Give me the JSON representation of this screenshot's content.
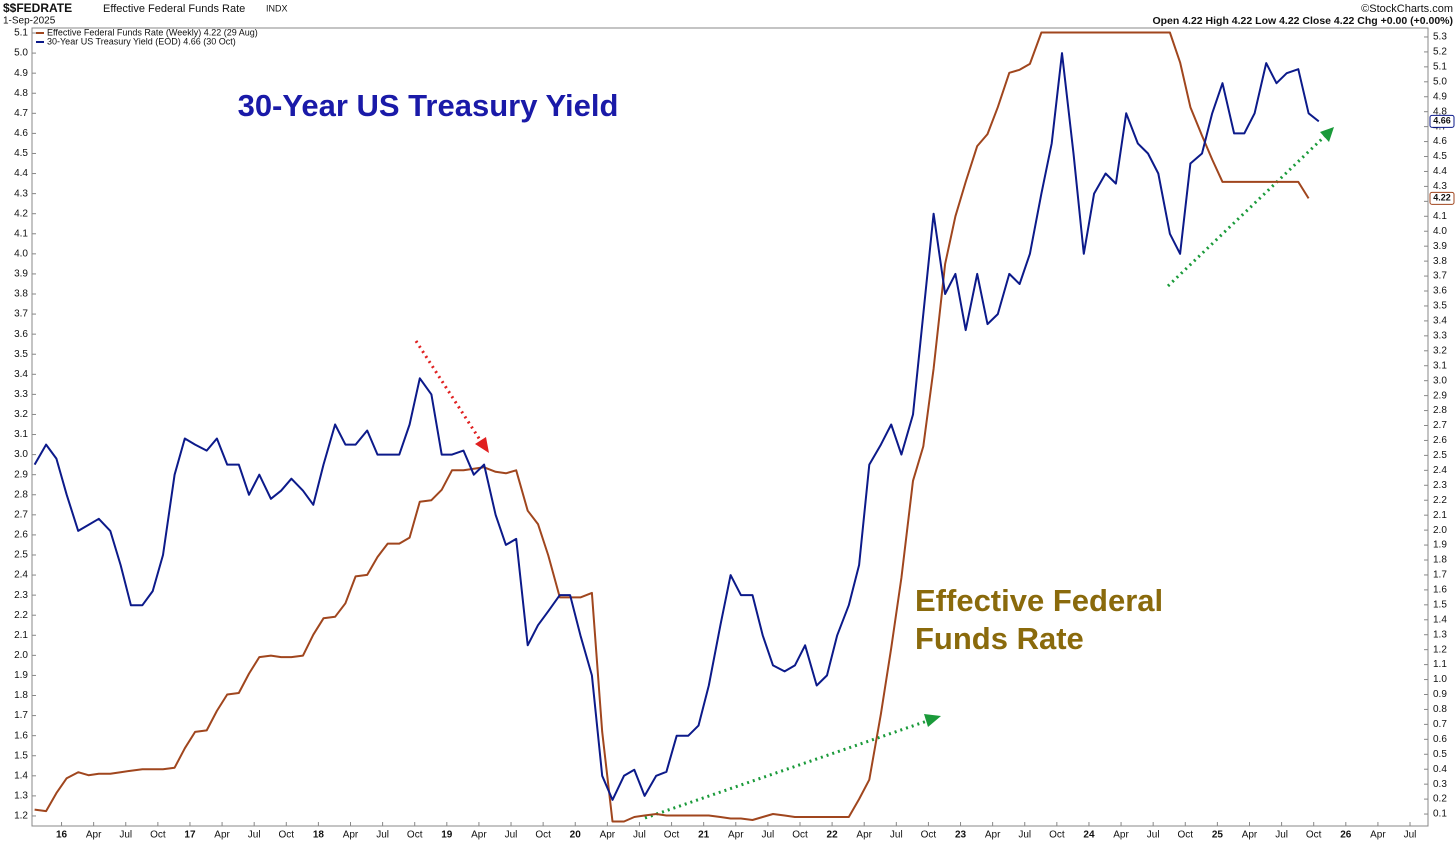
{
  "chart_data": {
    "type": "line",
    "header": {
      "symbol": "$$FEDRATE",
      "name": "Effective Federal Funds Rate",
      "exchange": "INDX",
      "date": "1-Sep-2025",
      "copyright": "©StockCharts.com",
      "quote": "Open 4.22  High 4.22  Low 4.22  Close 4.22  Chg +0.00 (+0.00%)"
    },
    "annotations": [
      "30-Year US Treasury Yield",
      "Effective Federal",
      "Funds Rate"
    ],
    "x": [
      2015.79,
      2015.88,
      2015.96,
      2016.04,
      2016.13,
      2016.21,
      2016.29,
      2016.38,
      2016.46,
      2016.54,
      2016.63,
      2016.71,
      2016.79,
      2016.88,
      2016.96,
      2017.04,
      2017.13,
      2017.21,
      2017.29,
      2017.38,
      2017.46,
      2017.54,
      2017.63,
      2017.71,
      2017.79,
      2017.88,
      2017.96,
      2018.04,
      2018.13,
      2018.21,
      2018.29,
      2018.38,
      2018.46,
      2018.54,
      2018.63,
      2018.71,
      2018.79,
      2018.88,
      2018.96,
      2019.04,
      2019.13,
      2019.21,
      2019.29,
      2019.38,
      2019.46,
      2019.54,
      2019.63,
      2019.71,
      2019.79,
      2019.88,
      2019.96,
      2020.04,
      2020.13,
      2020.21,
      2020.29,
      2020.38,
      2020.46,
      2020.54,
      2020.63,
      2020.71,
      2020.79,
      2020.88,
      2020.96,
      2021.04,
      2021.13,
      2021.21,
      2021.29,
      2021.38,
      2021.46,
      2021.54,
      2021.63,
      2021.71,
      2021.79,
      2021.88,
      2021.96,
      2022.04,
      2022.13,
      2022.21,
      2022.29,
      2022.38,
      2022.46,
      2022.54,
      2022.63,
      2022.71,
      2022.79,
      2022.88,
      2022.96,
      2023.04,
      2023.13,
      2023.21,
      2023.29,
      2023.38,
      2023.46,
      2023.54,
      2023.63,
      2023.71,
      2023.79,
      2023.88,
      2023.96,
      2024.04,
      2024.13,
      2024.21,
      2024.29,
      2024.38,
      2024.46,
      2024.54,
      2024.63,
      2024.71,
      2024.79,
      2024.88,
      2024.96,
      2025.04,
      2025.13,
      2025.21,
      2025.29,
      2025.38,
      2025.46,
      2025.54,
      2025.63,
      2025.71,
      2025.79
    ],
    "series": [
      {
        "name": "Effective Federal Funds Rate (Weekly) 4.22 (29 Aug)",
        "color": "#a0461e",
        "axis": "y2",
        "last_label": "4.22",
        "values": [
          0.13,
          0.12,
          0.24,
          0.34,
          0.38,
          0.36,
          0.37,
          0.37,
          0.38,
          0.39,
          0.4,
          0.4,
          0.4,
          0.41,
          0.54,
          0.65,
          0.66,
          0.79,
          0.9,
          0.91,
          1.04,
          1.15,
          1.16,
          1.15,
          1.15,
          1.16,
          1.3,
          1.41,
          1.42,
          1.51,
          1.69,
          1.7,
          1.82,
          1.91,
          1.91,
          1.95,
          2.19,
          2.2,
          2.27,
          2.4,
          2.4,
          2.41,
          2.42,
          2.39,
          2.38,
          2.4,
          2.13,
          2.04,
          1.83,
          1.55,
          1.55,
          1.55,
          1.58,
          0.65,
          0.05,
          0.05,
          0.08,
          0.09,
          0.1,
          0.09,
          0.09,
          0.09,
          0.09,
          0.09,
          0.08,
          0.07,
          0.07,
          0.06,
          0.08,
          0.1,
          0.09,
          0.08,
          0.08,
          0.08,
          0.08,
          0.08,
          0.08,
          0.2,
          0.33,
          0.77,
          1.21,
          1.68,
          2.33,
          2.56,
          3.08,
          3.78,
          4.1,
          4.33,
          4.57,
          4.65,
          4.83,
          5.06,
          5.08,
          5.12,
          5.33,
          5.33,
          5.33,
          5.33,
          5.33,
          5.33,
          5.33,
          5.33,
          5.33,
          5.33,
          5.33,
          5.33,
          5.33,
          5.13,
          4.83,
          4.64,
          4.48,
          4.33,
          4.33,
          4.33,
          4.33,
          4.33,
          4.33,
          4.33,
          4.33,
          4.22,
          null
        ]
      },
      {
        "name": "30-Year US Treasury Yield (EOD) 4.66 (30 Oct)",
        "color": "#0c1a8a",
        "axis": "y",
        "last_label": "4.66",
        "values": [
          2.95,
          3.05,
          2.98,
          2.8,
          2.62,
          2.65,
          2.68,
          2.62,
          2.45,
          2.25,
          2.25,
          2.32,
          2.5,
          2.9,
          3.08,
          3.05,
          3.02,
          3.08,
          2.95,
          2.95,
          2.8,
          2.9,
          2.78,
          2.82,
          2.88,
          2.82,
          2.75,
          2.95,
          3.15,
          3.05,
          3.05,
          3.12,
          3.0,
          3.0,
          3.0,
          3.15,
          3.38,
          3.3,
          3.0,
          3.0,
          3.02,
          2.9,
          2.95,
          2.7,
          2.55,
          2.58,
          2.05,
          2.15,
          2.22,
          2.3,
          2.3,
          2.1,
          1.9,
          1.4,
          1.28,
          1.4,
          1.43,
          1.3,
          1.4,
          1.42,
          1.6,
          1.6,
          1.65,
          1.85,
          2.15,
          2.4,
          2.3,
          2.3,
          2.1,
          1.95,
          1.92,
          1.95,
          2.05,
          1.85,
          1.9,
          2.1,
          2.25,
          2.45,
          2.95,
          3.05,
          3.15,
          3.0,
          3.2,
          3.7,
          4.2,
          3.8,
          3.9,
          3.62,
          3.9,
          3.65,
          3.7,
          3.9,
          3.85,
          4.0,
          4.3,
          4.55,
          5.0,
          4.5,
          4.0,
          4.3,
          4.4,
          4.35,
          4.7,
          4.55,
          4.5,
          4.4,
          4.1,
          4.0,
          4.45,
          4.5,
          4.7,
          4.85,
          4.6,
          4.6,
          4.7,
          4.95,
          4.85,
          4.9,
          4.92,
          4.7,
          4.66
        ]
      }
    ],
    "xlim": [
      2015.77,
      2026.64
    ],
    "xticks": [
      {
        "value": 2016,
        "label": "16"
      },
      {
        "value": 2016.25,
        "label": "Apr"
      },
      {
        "value": 2016.5,
        "label": "Jul"
      },
      {
        "value": 2016.75,
        "label": "Oct"
      },
      {
        "value": 2017,
        "label": "17"
      },
      {
        "value": 2017.25,
        "label": "Apr"
      },
      {
        "value": 2017.5,
        "label": "Jul"
      },
      {
        "value": 2017.75,
        "label": "Oct"
      },
      {
        "value": 2018,
        "label": "18"
      },
      {
        "value": 2018.25,
        "label": "Apr"
      },
      {
        "value": 2018.5,
        "label": "Jul"
      },
      {
        "value": 2018.75,
        "label": "Oct"
      },
      {
        "value": 2019,
        "label": "19"
      },
      {
        "value": 2019.25,
        "label": "Apr"
      },
      {
        "value": 2019.5,
        "label": "Jul"
      },
      {
        "value": 2019.75,
        "label": "Oct"
      },
      {
        "value": 2020,
        "label": "20"
      },
      {
        "value": 2020.25,
        "label": "Apr"
      },
      {
        "value": 2020.5,
        "label": "Jul"
      },
      {
        "value": 2020.75,
        "label": "Oct"
      },
      {
        "value": 2021,
        "label": "21"
      },
      {
        "value": 2021.25,
        "label": "Apr"
      },
      {
        "value": 2021.5,
        "label": "Jul"
      },
      {
        "value": 2021.75,
        "label": "Oct"
      },
      {
        "value": 2022,
        "label": "22"
      },
      {
        "value": 2022.25,
        "label": "Apr"
      },
      {
        "value": 2022.5,
        "label": "Jul"
      },
      {
        "value": 2022.75,
        "label": "Oct"
      },
      {
        "value": 2023,
        "label": "23"
      },
      {
        "value": 2023.25,
        "label": "Apr"
      },
      {
        "value": 2023.5,
        "label": "Jul"
      },
      {
        "value": 2023.75,
        "label": "Oct"
      },
      {
        "value": 2024,
        "label": "24"
      },
      {
        "value": 2024.25,
        "label": "Apr"
      },
      {
        "value": 2024.5,
        "label": "Jul"
      },
      {
        "value": 2024.75,
        "label": "Oct"
      },
      {
        "value": 2025,
        "label": "25"
      },
      {
        "value": 2025.25,
        "label": "Apr"
      },
      {
        "value": 2025.5,
        "label": "Jul"
      },
      {
        "value": 2025.75,
        "label": "Oct"
      },
      {
        "value": 2026,
        "label": "26"
      },
      {
        "value": 2026.25,
        "label": "Apr"
      },
      {
        "value": 2026.5,
        "label": "Jul"
      }
    ],
    "ylim": [
      1.15,
      5.125
    ],
    "yticks": [
      1.2,
      1.3,
      1.4,
      1.5,
      1.6,
      1.7,
      1.8,
      1.9,
      {
        "value": 2,
        "label": "2.0"
      },
      2.1,
      2.2,
      2.3,
      2.4,
      2.5,
      2.6,
      2.7,
      2.8,
      2.9,
      {
        "value": 3,
        "label": "3.0"
      },
      3.1,
      3.2,
      3.3,
      3.4,
      3.5,
      3.6,
      3.7,
      3.8,
      3.9,
      {
        "value": 4,
        "label": "4.0"
      },
      4.1,
      4.2,
      4.3,
      4.4,
      4.5,
      4.6,
      4.7,
      4.8,
      4.9,
      {
        "value": 5,
        "label": "5.0"
      },
      5.1
    ],
    "y2lim": [
      0.02,
      5.36
    ],
    "y2ticks": [
      0.1,
      0.2,
      0.3,
      0.4,
      0.5,
      0.6,
      0.7,
      0.8,
      0.9,
      {
        "value": 1,
        "label": "1.0"
      },
      1.1,
      1.2,
      1.3,
      1.4,
      1.5,
      1.6,
      1.7,
      1.8,
      1.9,
      {
        "value": 2,
        "label": "2.0"
      },
      2.1,
      2.2,
      2.3,
      2.4,
      2.5,
      2.6,
      2.7,
      2.8,
      2.9,
      {
        "value": 3,
        "label": "3.0"
      },
      3.1,
      3.2,
      3.3,
      3.4,
      3.5,
      3.6,
      3.7,
      3.8,
      3.9,
      {
        "value": 4,
        "label": "4.0"
      },
      4.1,
      4.2,
      4.3,
      4.4,
      4.5,
      4.6,
      4.7,
      4.8,
      4.9,
      {
        "value": 5,
        "label": "5.0"
      },
      5.1,
      5.2,
      5.3
    ],
    "grid": false
  }
}
